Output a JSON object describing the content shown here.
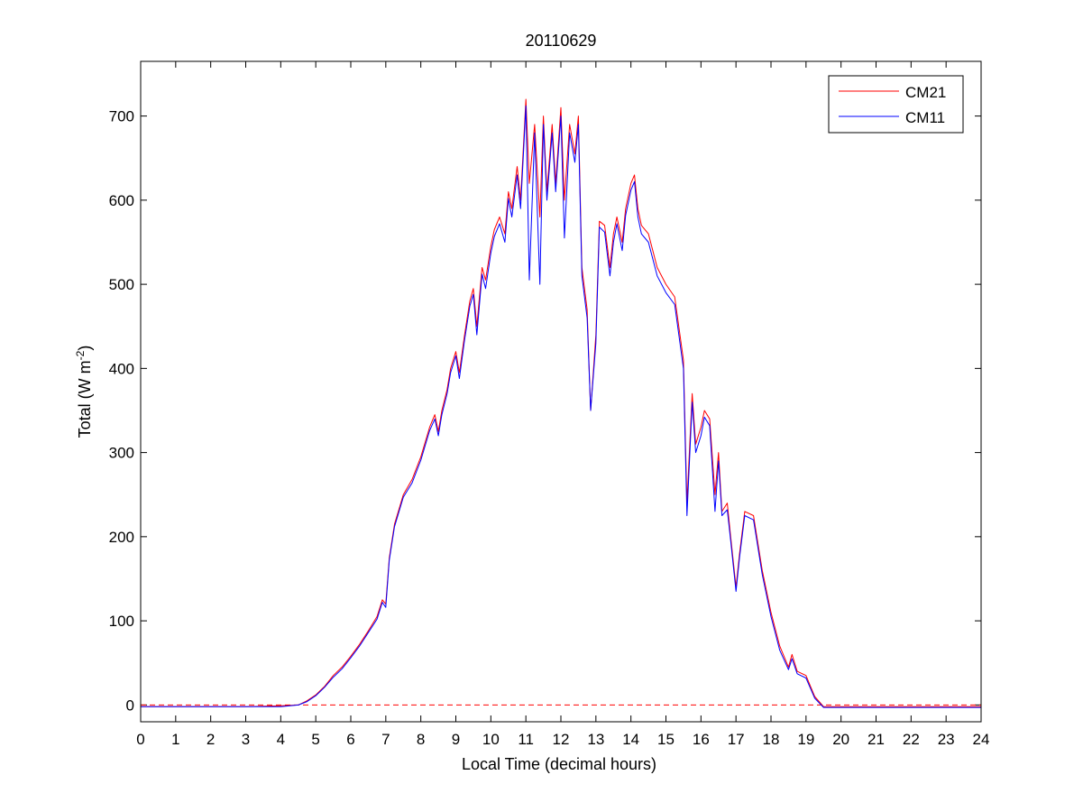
{
  "chart_data": {
    "type": "line",
    "title": "20110629",
    "xlabel": "Local Time (decimal hours)",
    "ylabel": {
      "main": "Total (W m",
      "sup": "-2",
      "close": ")"
    },
    "xlim": [
      0,
      24
    ],
    "ylim": [
      -20,
      765
    ],
    "xticks": [
      0,
      1,
      2,
      3,
      4,
      5,
      6,
      7,
      8,
      9,
      10,
      11,
      12,
      13,
      14,
      15,
      16,
      17,
      18,
      19,
      20,
      21,
      22,
      23,
      24
    ],
    "yticks": [
      0,
      100,
      200,
      300,
      400,
      500,
      600,
      700
    ],
    "grid": false,
    "legend_position": "top-right",
    "reference_line": {
      "y": 0,
      "style": "dashed",
      "color": "#ff0000"
    },
    "series": [
      {
        "name": "CM21",
        "color": "#ff0000",
        "x": [
          0,
          1,
          2,
          3,
          4,
          4.5,
          4.75,
          5,
          5.25,
          5.5,
          5.75,
          6,
          6.25,
          6.5,
          6.75,
          6.9,
          7,
          7.1,
          7.25,
          7.5,
          7.75,
          8,
          8.25,
          8.4,
          8.5,
          8.6,
          8.75,
          8.85,
          9,
          9.1,
          9.25,
          9.4,
          9.5,
          9.6,
          9.75,
          9.85,
          10,
          10.1,
          10.25,
          10.4,
          10.5,
          10.6,
          10.75,
          10.85,
          11,
          11.1,
          11.25,
          11.4,
          11.5,
          11.6,
          11.75,
          11.85,
          12,
          12.1,
          12.25,
          12.4,
          12.5,
          12.6,
          12.75,
          12.85,
          13,
          13.1,
          13.25,
          13.4,
          13.5,
          13.6,
          13.75,
          13.85,
          14,
          14.1,
          14.2,
          14.3,
          14.5,
          14.75,
          15,
          15.25,
          15.5,
          15.6,
          15.75,
          15.85,
          16,
          16.1,
          16.25,
          16.4,
          16.5,
          16.6,
          16.75,
          16.85,
          17,
          17.1,
          17.25,
          17.5,
          17.75,
          18,
          18.25,
          18.5,
          18.6,
          18.75,
          19,
          19.25,
          19.5,
          19.75,
          20,
          21,
          22,
          23,
          24
        ],
        "y": [
          -2,
          -2,
          -2,
          -2,
          -1,
          0,
          5,
          12,
          22,
          35,
          45,
          58,
          72,
          88,
          105,
          125,
          120,
          175,
          215,
          250,
          268,
          295,
          330,
          345,
          325,
          350,
          375,
          400,
          420,
          395,
          440,
          480,
          495,
          450,
          520,
          505,
          545,
          565,
          580,
          560,
          610,
          590,
          640,
          600,
          720,
          620,
          690,
          580,
          700,
          610,
          690,
          620,
          710,
          600,
          690,
          655,
          700,
          520,
          470,
          350,
          440,
          575,
          570,
          520,
          560,
          580,
          550,
          590,
          620,
          630,
          590,
          570,
          560,
          520,
          500,
          485,
          410,
          240,
          370,
          310,
          330,
          350,
          340,
          250,
          300,
          230,
          240,
          200,
          140,
          180,
          230,
          225,
          160,
          110,
          70,
          45,
          60,
          40,
          35,
          10,
          -2,
          -2,
          -2,
          -2,
          -2,
          -2,
          -2
        ]
      },
      {
        "name": "CM11",
        "color": "#0000ff",
        "x": [
          0,
          1,
          2,
          3,
          4,
          4.5,
          4.75,
          5,
          5.25,
          5.5,
          5.75,
          6,
          6.25,
          6.5,
          6.75,
          6.9,
          7,
          7.1,
          7.25,
          7.5,
          7.75,
          8,
          8.25,
          8.4,
          8.5,
          8.6,
          8.75,
          8.85,
          9,
          9.1,
          9.25,
          9.4,
          9.5,
          9.6,
          9.75,
          9.85,
          10,
          10.1,
          10.25,
          10.4,
          10.5,
          10.6,
          10.75,
          10.85,
          11,
          11.1,
          11.25,
          11.4,
          11.5,
          11.6,
          11.75,
          11.85,
          12,
          12.1,
          12.25,
          12.4,
          12.5,
          12.6,
          12.75,
          12.85,
          13,
          13.1,
          13.25,
          13.4,
          13.5,
          13.6,
          13.75,
          13.85,
          14,
          14.1,
          14.2,
          14.3,
          14.5,
          14.75,
          15,
          15.25,
          15.5,
          15.6,
          15.75,
          15.85,
          16,
          16.1,
          16.25,
          16.4,
          16.5,
          16.6,
          16.75,
          16.85,
          17,
          17.1,
          17.25,
          17.5,
          17.75,
          18,
          18.25,
          18.5,
          18.6,
          18.75,
          19,
          19.25,
          19.5,
          19.75,
          20,
          21,
          22,
          23,
          24
        ],
        "y": [
          -2,
          -2,
          -2,
          -2,
          -2,
          0,
          4,
          11,
          21,
          33,
          43,
          56,
          70,
          86,
          102,
          122,
          116,
          172,
          212,
          247,
          264,
          291,
          326,
          340,
          320,
          345,
          370,
          395,
          415,
          388,
          434,
          474,
          488,
          440,
          512,
          495,
          537,
          557,
          572,
          550,
          602,
          580,
          630,
          590,
          712,
          505,
          680,
          500,
          690,
          600,
          680,
          610,
          700,
          555,
          680,
          645,
          690,
          510,
          460,
          350,
          430,
          568,
          562,
          510,
          550,
          572,
          540,
          582,
          612,
          622,
          580,
          560,
          550,
          510,
          490,
          476,
          400,
          225,
          360,
          300,
          320,
          342,
          332,
          230,
          290,
          225,
          232,
          195,
          135,
          175,
          225,
          220,
          155,
          105,
          65,
          42,
          55,
          37,
          32,
          8,
          -3,
          -3,
          -3,
          -3,
          -3,
          -3,
          -3
        ]
      }
    ]
  }
}
